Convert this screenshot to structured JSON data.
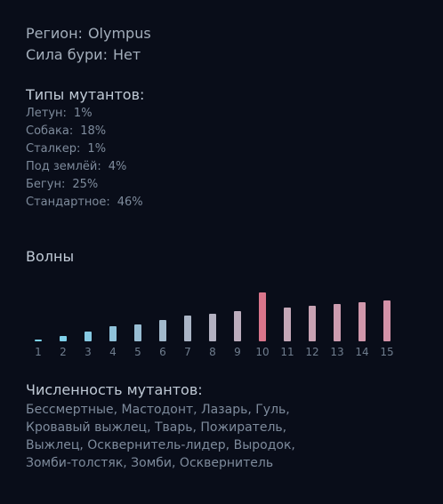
{
  "region": {
    "label": "Регион:",
    "value": "Olympus"
  },
  "storm": {
    "label": "Сила бури:",
    "value": "Нет"
  },
  "mutant_types": {
    "title": "Типы мутантов:",
    "items": [
      {
        "label": "Летун:",
        "percent": "1%"
      },
      {
        "label": "Собака:",
        "percent": "18%"
      },
      {
        "label": "Сталкер:",
        "percent": "1%"
      },
      {
        "label": "Под землёй:",
        "percent": "4%"
      },
      {
        "label": "Бегун:",
        "percent": "25%"
      },
      {
        "label": "Стандартное:",
        "percent": "46%"
      }
    ]
  },
  "waves": {
    "title": "Волны",
    "items": [
      {
        "label": "1",
        "level": 0.04,
        "color": "#7dd3ee"
      },
      {
        "label": "2",
        "level": 0.11,
        "color": "#7fd0ea"
      },
      {
        "label": "3",
        "level": 0.2,
        "color": "#86c9e2"
      },
      {
        "label": "4",
        "level": 0.31,
        "color": "#8fc2da"
      },
      {
        "label": "5",
        "level": 0.35,
        "color": "#98bdd3"
      },
      {
        "label": "6",
        "level": 0.44,
        "color": "#a2b9cc"
      },
      {
        "label": "7",
        "level": 0.53,
        "color": "#abb5c6"
      },
      {
        "label": "8",
        "level": 0.57,
        "color": "#b3b1c1"
      },
      {
        "label": "9",
        "level": 0.62,
        "color": "#bcadbd"
      },
      {
        "label": "10",
        "level": 1.0,
        "color": "#d9758b"
      },
      {
        "label": "11",
        "level": 0.69,
        "color": "#c4a7b7"
      },
      {
        "label": "12",
        "level": 0.73,
        "color": "#c8a2b3"
      },
      {
        "label": "13",
        "level": 0.76,
        "color": "#cc9caf"
      },
      {
        "label": "14",
        "level": 0.8,
        "color": "#d097ab"
      },
      {
        "label": "15",
        "level": 0.84,
        "color": "#d392a8"
      }
    ]
  },
  "mutant_count": {
    "title": "Численность мутантов:",
    "text": "Бессмертные, Мастодонт, Лазарь, Гуль, Кровавый выжлец, Тварь, Пожиратель, Выжлец, Осквернитель-лидер, Выродок, Зомби-толстяк, Зомби, Осквернитель"
  }
}
